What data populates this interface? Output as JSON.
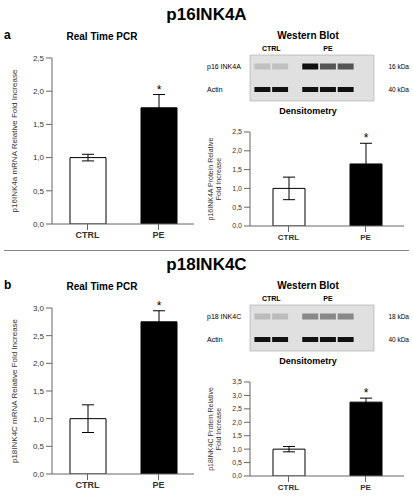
{
  "chart_data": [
    {
      "type": "bar",
      "title": "Real Time PCR",
      "categories": [
        "CTRL",
        "PE"
      ],
      "values": [
        1.0,
        1.75
      ],
      "errors": [
        0.05,
        0.2
      ],
      "colors": [
        "white",
        "black"
      ],
      "ylabel": "p16INK4a mRNA Relative Fold Increase",
      "ylim": [
        0,
        2.5
      ],
      "yticks": [
        {
          "value": 0,
          "label": "0,0"
        },
        {
          "value": 0.5,
          "label": "0,5"
        },
        {
          "value": 1.0,
          "label": "1,0"
        },
        {
          "value": 1.5,
          "label": "1,5"
        },
        {
          "value": 2.0,
          "label": "2,0"
        },
        {
          "value": 2.5,
          "label": "2,5"
        }
      ],
      "grid": false,
      "annotations": [
        {
          "text": "p16INK4A"
        },
        {
          "text": "a"
        },
        {
          "text": "*",
          "category": "PE"
        }
      ]
    },
    {
      "type": "bar",
      "title": "Densitometry",
      "categories": [
        "CTRL",
        "PE"
      ],
      "values": [
        1.0,
        1.65
      ],
      "errors": [
        0.3,
        0.55
      ],
      "colors": [
        "white",
        "black"
      ],
      "ylabel": "p16INK4A Protein Relative Fold Increase",
      "ylim": [
        0,
        2.5
      ],
      "yticks": [
        {
          "value": 0.0,
          "label": "0,0"
        },
        {
          "value": 0.5,
          "label": "0,5"
        },
        {
          "value": 1.0,
          "label": "1,0"
        },
        {
          "value": 1.5,
          "label": "1,5"
        },
        {
          "value": 2.0,
          "label": "2,0"
        },
        {
          "value": 2.5,
          "label": "2,5"
        }
      ],
      "grid": false,
      "annotations": [
        {
          "text": "Western Blot"
        },
        {
          "text": "CTRL"
        },
        {
          "text": "PE"
        },
        {
          "text": "p16 INK4A"
        },
        {
          "text": "16 kDa"
        },
        {
          "text": "Actin"
        },
        {
          "text": "40 kDa"
        },
        {
          "text": "*",
          "category": "PE"
        }
      ]
    },
    {
      "type": "bar",
      "title": "Real Time PCR",
      "categories": [
        "CTRL",
        "PE"
      ],
      "values": [
        1.0,
        2.75
      ],
      "errors": [
        0.25,
        0.2
      ],
      "colors": [
        "white",
        "black"
      ],
      "ylabel": "p18INK4C mRNA Relative Fold Increase",
      "ylim": [
        0,
        3.0
      ],
      "yticks": [
        {
          "value": 0.0,
          "label": "0,0"
        },
        {
          "value": 0.5,
          "label": "0,5"
        },
        {
          "value": 1.0,
          "label": "1,0"
        },
        {
          "value": 1.5,
          "label": "1,5"
        },
        {
          "value": 2.0,
          "label": "2,0"
        },
        {
          "value": 2.5,
          "label": "2,5"
        },
        {
          "value": 3.0,
          "label": "3,0"
        }
      ],
      "grid": false,
      "annotations": [
        {
          "text": "p18INK4C"
        },
        {
          "text": "b"
        },
        {
          "text": "*",
          "category": "PE"
        }
      ]
    },
    {
      "type": "bar",
      "title": "Densitometry",
      "categories": [
        "CTRL",
        "PE"
      ],
      "values": [
        1.0,
        2.75
      ],
      "errors": [
        0.1,
        0.15
      ],
      "colors": [
        "white",
        "black"
      ],
      "ylabel": "p18INK4C Protein Relative Fold Increase",
      "ylim": [
        0,
        3.5
      ],
      "yticks": [
        {
          "value": 0.0,
          "label": "0,0"
        },
        {
          "value": 0.5,
          "label": "0,5"
        },
        {
          "value": 1.0,
          "label": "1,0"
        },
        {
          "value": 1.5,
          "label": "1,5"
        },
        {
          "value": 2.0,
          "label": "2,0"
        },
        {
          "value": 2.5,
          "label": "2,5"
        },
        {
          "value": 3.0,
          "label": "3,0"
        },
        {
          "value": 3.5,
          "label": "3,5"
        }
      ],
      "grid": false,
      "annotations": [
        {
          "text": "Western Blot"
        },
        {
          "text": "CTRL"
        },
        {
          "text": "PE"
        },
        {
          "text": "p18 INK4C"
        },
        {
          "text": "18 kDa"
        },
        {
          "text": "Actin"
        },
        {
          "text": "40 kDa"
        },
        {
          "text": "*",
          "category": "PE"
        }
      ]
    }
  ]
}
